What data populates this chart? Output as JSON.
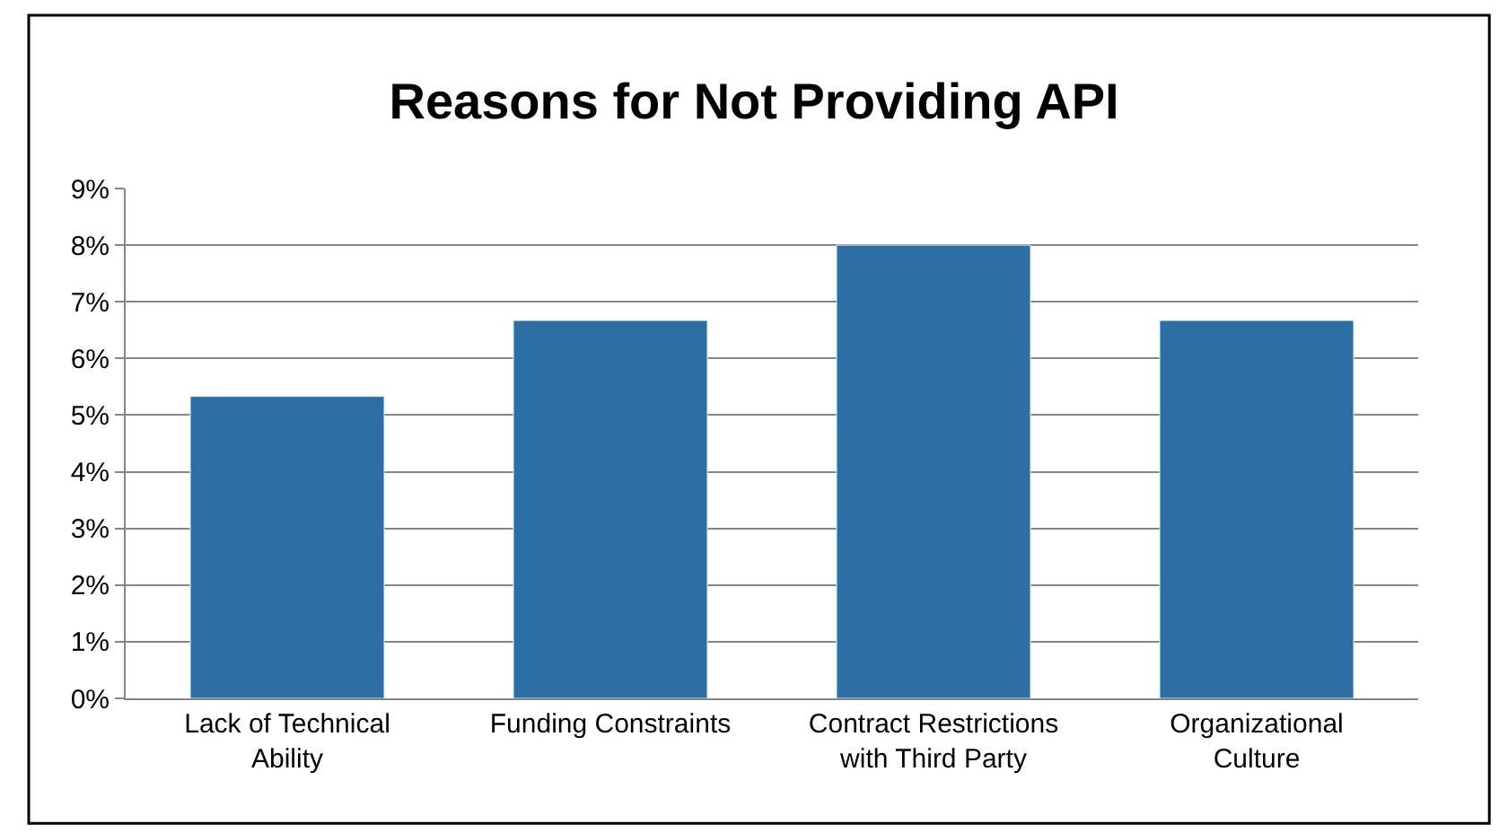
{
  "chart_data": {
    "type": "bar",
    "title": "Reasons for Not Providing API",
    "categories": [
      "Lack of Technical Ability",
      "Funding Constraints",
      "Contract Restrictions with Third Party",
      "Organizational Culture"
    ],
    "values": [
      5.33,
      6.67,
      8.0,
      6.67
    ],
    "color": "#2e6fa3",
    "ylim": [
      0,
      9
    ],
    "yticks": [
      {
        "value": 0,
        "label": "0%"
      },
      {
        "value": 1,
        "label": "1%"
      },
      {
        "value": 2,
        "label": "2%"
      },
      {
        "value": 3,
        "label": "3%"
      },
      {
        "value": 4,
        "label": "4%"
      },
      {
        "value": 5,
        "label": "5%"
      },
      {
        "value": 6,
        "label": "6%"
      },
      {
        "value": 7,
        "label": "7%"
      },
      {
        "value": 8,
        "label": "8%"
      },
      {
        "value": 9,
        "label": "9%"
      }
    ],
    "grid": "y"
  }
}
